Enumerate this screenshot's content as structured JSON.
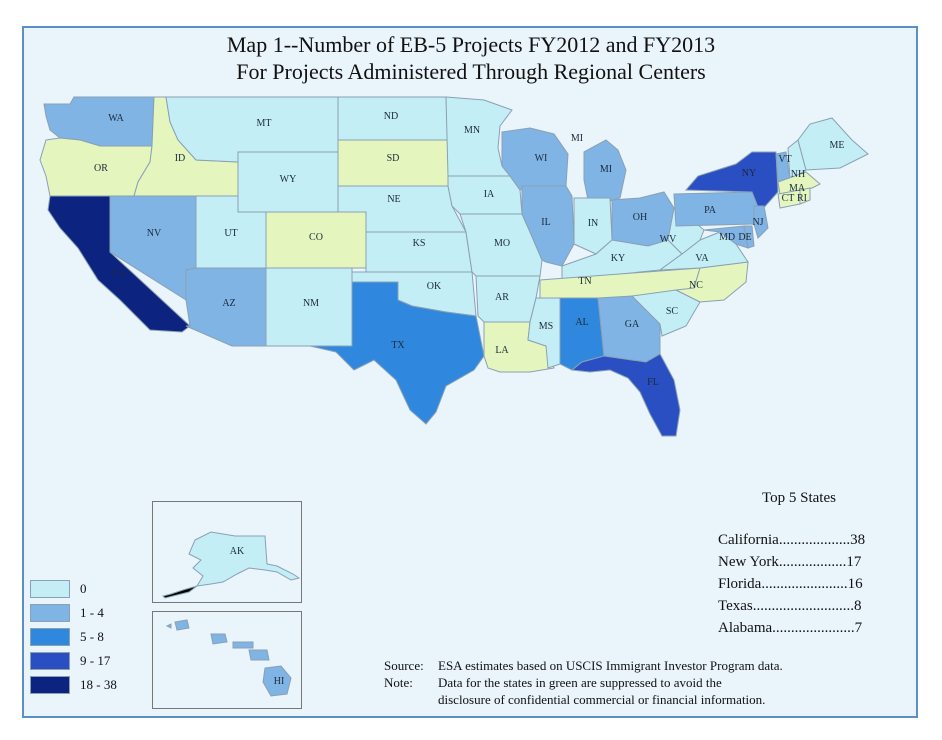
{
  "title": {
    "line1": "Map 1--Number of EB-5 Projects FY2012 and FY2013",
    "line2": "For Projects Administered Through Regional Centers"
  },
  "colors": {
    "bin_0": "#c4eef5",
    "bin_1_4": "#80b4e4",
    "bin_5_8": "#2f88de",
    "bin_9_17": "#2a4fc2",
    "bin_18_38": "#0d2380",
    "suppressed": "#e4f6be",
    "background": "#e9f4fb",
    "border": "#5a8fc8"
  },
  "legend": [
    {
      "label": "0",
      "color": "#c4eef5"
    },
    {
      "label": "1 - 4",
      "color": "#80b4e4"
    },
    {
      "label": "5 - 8",
      "color": "#2f88de"
    },
    {
      "label": "9 - 17",
      "color": "#2a4fc2"
    },
    {
      "label": "18 - 38",
      "color": "#0d2380"
    }
  ],
  "states": {
    "WA": "1-4",
    "OR": "suppressed",
    "CA": "18-38",
    "ID": "suppressed",
    "NV": "1-4",
    "MT": "0",
    "WY": "0",
    "UT": "0",
    "AZ": "1-4",
    "CO": "suppressed",
    "NM": "0",
    "ND": "0",
    "SD": "suppressed",
    "NE": "0",
    "KS": "0",
    "OK": "0",
    "TX": "5-8",
    "MN": "0",
    "IA": "0",
    "MO": "0",
    "AR": "0",
    "LA": "suppressed",
    "WI": "1-4",
    "IL": "1-4",
    "MI": "1-4",
    "IN": "0",
    "KY": "0",
    "TN": "suppressed",
    "MS": "0",
    "AL": "5-8",
    "GA": "1-4",
    "FL": "9-17",
    "SC": "0",
    "NC": "suppressed",
    "VA": "0",
    "WV": "0",
    "OH": "1-4",
    "PA": "1-4",
    "NY": "9-17",
    "NJ": "1-4",
    "MD": "1-4",
    "DE": "1-4",
    "VT": "1-4",
    "NH": "0",
    "ME": "0",
    "MA": "suppressed",
    "CT": "suppressed",
    "RI": "suppressed",
    "AK": "0",
    "HI": "1-4"
  },
  "top5": {
    "title": "Top 5 States",
    "rows": [
      {
        "text": "California...................38"
      },
      {
        "text": "New York..................17"
      },
      {
        "text": "Florida.......................16"
      },
      {
        "text": "Texas...........................8"
      },
      {
        "text": "Alabama......................7"
      }
    ]
  },
  "source": {
    "source_label": "Source:",
    "source_text": "ESA estimates based on USCIS Immigrant Investor Program  data.",
    "note_label": "Note:",
    "note_line1": "Data for the states in green are suppressed to avoid the",
    "note_line2": "disclosure of confidential commercial or financial information."
  }
}
